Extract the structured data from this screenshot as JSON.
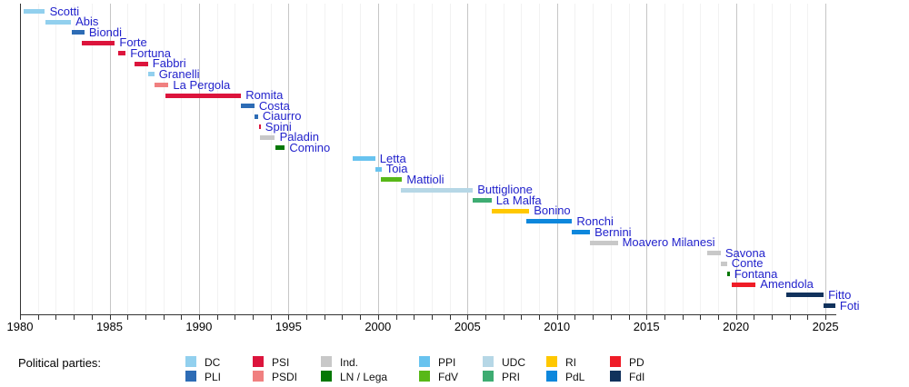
{
  "chart_data": {
    "type": "timeline",
    "title": "",
    "label_color": "#2222cc",
    "x_axis": {
      "min": 1980,
      "max": 2025.6,
      "tick_step": 1,
      "label_step": 5,
      "tick_labels": [
        "1980",
        "1985",
        "1990",
        "1995",
        "2000",
        "2005",
        "2010",
        "2015",
        "2020",
        "2025"
      ]
    },
    "grid": "vertical-yearly",
    "legend_position": "bottom",
    "bars": [
      {
        "name": "Scotti",
        "party": "DC",
        "start": 1980.2,
        "end": 1981.4
      },
      {
        "name": "Abis",
        "party": "DC",
        "start": 1981.4,
        "end": 1982.85
      },
      {
        "name": "Biondi",
        "party": "PLI",
        "start": 1982.9,
        "end": 1983.6
      },
      {
        "name": "Forte",
        "party": "PSI",
        "start": 1983.45,
        "end": 1985.3
      },
      {
        "name": "Fortuna",
        "party": "PSI",
        "start": 1985.5,
        "end": 1985.9
      },
      {
        "name": "Fabbri",
        "party": "PSI",
        "start": 1986.4,
        "end": 1987.15
      },
      {
        "name": "Granelli",
        "party": "DC",
        "start": 1987.15,
        "end": 1987.5
      },
      {
        "name": "La Pergola",
        "party": "PSDI",
        "start": 1987.5,
        "end": 1988.3
      },
      {
        "name": "Romita",
        "party": "PSI",
        "start": 1988.1,
        "end": 1992.35
      },
      {
        "name": "Costa",
        "party": "PLI",
        "start": 1992.35,
        "end": 1993.1
      },
      {
        "name": "Ciaurro",
        "party": "PLI",
        "start": 1993.1,
        "end": 1993.3
      },
      {
        "name": "Spini",
        "party": "PSI",
        "start": 1993.35,
        "end": 1993.45
      },
      {
        "name": "Paladin",
        "party": "Ind.",
        "start": 1993.4,
        "end": 1994.25
      },
      {
        "name": "Comino",
        "party": "LN / Lega",
        "start": 1994.25,
        "end": 1994.8
      },
      {
        "name": "Letta",
        "party": "PPI",
        "start": 1998.6,
        "end": 1999.85
      },
      {
        "name": "Toia",
        "party": "PPI",
        "start": 1999.85,
        "end": 2000.2
      },
      {
        "name": "Mattioli",
        "party": "FdV",
        "start": 2000.15,
        "end": 2001.35
      },
      {
        "name": "Buttiglione",
        "party": "UDC",
        "start": 2001.3,
        "end": 2005.3
      },
      {
        "name": "La Malfa",
        "party": "PRI",
        "start": 2005.3,
        "end": 2006.35
      },
      {
        "name": "Bonino",
        "party": "RI",
        "start": 2006.35,
        "end": 2008.45
      },
      {
        "name": "Ronchi",
        "party": "PdL",
        "start": 2008.3,
        "end": 2010.85
      },
      {
        "name": "Bernini",
        "party": "PdL",
        "start": 2010.85,
        "end": 2011.85
      },
      {
        "name": "Moavero Milanesi",
        "party": "Ind.",
        "start": 2011.85,
        "end": 2013.4
      },
      {
        "name": "Savona",
        "party": "Ind.",
        "start": 2018.4,
        "end": 2019.15
      },
      {
        "name": "Conte",
        "party": "Ind.",
        "start": 2019.15,
        "end": 2019.5
      },
      {
        "name": "Fontana",
        "party": "LN / Lega",
        "start": 2019.5,
        "end": 2019.65
      },
      {
        "name": "Amendola",
        "party": "PD",
        "start": 2019.75,
        "end": 2021.1
      },
      {
        "name": "Fitto",
        "party": "FdI",
        "start": 2022.8,
        "end": 2024.9
      },
      {
        "name": "Foti",
        "party": "FdI",
        "start": 2024.9,
        "end": 2025.55
      }
    ]
  },
  "parties": {
    "DC": "#92d0ee",
    "PLI": "#2d6cb5",
    "PSI": "#dc143c",
    "PSDI": "#f08080",
    "Ind.": "#c8c8c8",
    "LN / Lega": "#067806",
    "PPI": "#68c3ef",
    "FdV": "#58b818",
    "UDC": "#b6d7e6",
    "PRI": "#3eac72",
    "RI": "#ffc800",
    "PdL": "#0d87dc",
    "PD": "#ef1c27",
    "FdI": "#11325c"
  },
  "legend": {
    "title": "Political parties:",
    "columns": [
      [
        "DC",
        "PLI"
      ],
      [
        "PSI",
        "PSDI"
      ],
      [
        "Ind.",
        "LN / Lega"
      ],
      [
        "PPI",
        "FdV"
      ],
      [
        "UDC",
        "PRI"
      ],
      [
        "RI",
        "PdL"
      ],
      [
        "PD",
        "FdI"
      ]
    ]
  }
}
